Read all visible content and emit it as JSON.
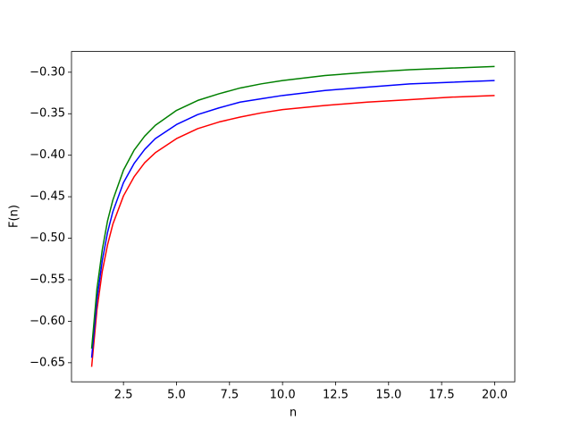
{
  "chart_data": {
    "type": "line",
    "xlabel": "n",
    "ylabel": "F(n)",
    "x": [
      1,
      1.25,
      1.5,
      1.75,
      2,
      2.5,
      3,
      3.5,
      4,
      5,
      6,
      7,
      8,
      9,
      10,
      12,
      14,
      16,
      18,
      20
    ],
    "series": [
      {
        "color": "#ff0000",
        "values": [
          -0.655,
          -0.586,
          -0.54,
          -0.508,
          -0.483,
          -0.449,
          -0.426,
          -0.409,
          -0.397,
          -0.38,
          -0.368,
          -0.36,
          -0.354,
          -0.349,
          -0.345,
          -0.34,
          -0.336,
          -0.333,
          -0.33,
          -0.328
        ]
      },
      {
        "color": "#0000ff",
        "values": [
          -0.644,
          -0.574,
          -0.527,
          -0.493,
          -0.468,
          -0.433,
          -0.41,
          -0.393,
          -0.38,
          -0.363,
          -0.351,
          -0.343,
          -0.336,
          -0.332,
          -0.328,
          -0.322,
          -0.318,
          -0.314,
          -0.312,
          -0.31
        ]
      },
      {
        "color": "#008000",
        "values": [
          -0.633,
          -0.561,
          -0.514,
          -0.479,
          -0.454,
          -0.418,
          -0.394,
          -0.377,
          -0.364,
          -0.346,
          -0.334,
          -0.326,
          -0.319,
          -0.314,
          -0.31,
          -0.304,
          -0.3,
          -0.297,
          -0.295,
          -0.293
        ]
      }
    ],
    "xlim": [
      0.05,
      20.95
    ],
    "ylim": [
      -0.673,
      -0.275
    ],
    "xticks": [
      {
        "value": 2.5,
        "label": "2.5"
      },
      {
        "value": 5,
        "label": "5.0"
      },
      {
        "value": 7.5,
        "label": "7.5"
      },
      {
        "value": 10,
        "label": "10.0"
      },
      {
        "value": 12.5,
        "label": "12.5"
      },
      {
        "value": 15,
        "label": "15.0"
      },
      {
        "value": 17.5,
        "label": "17.5"
      },
      {
        "value": 20,
        "label": "20.0"
      }
    ],
    "yticks": [
      {
        "value": -0.65,
        "label": "−0.65"
      },
      {
        "value": -0.6,
        "label": "−0.60"
      },
      {
        "value": -0.55,
        "label": "−0.55"
      },
      {
        "value": -0.5,
        "label": "−0.50"
      },
      {
        "value": -0.45,
        "label": "−0.45"
      },
      {
        "value": -0.4,
        "label": "−0.40"
      },
      {
        "value": -0.35,
        "label": "−0.35"
      },
      {
        "value": -0.3,
        "label": "−0.30"
      }
    ],
    "grid": false
  }
}
